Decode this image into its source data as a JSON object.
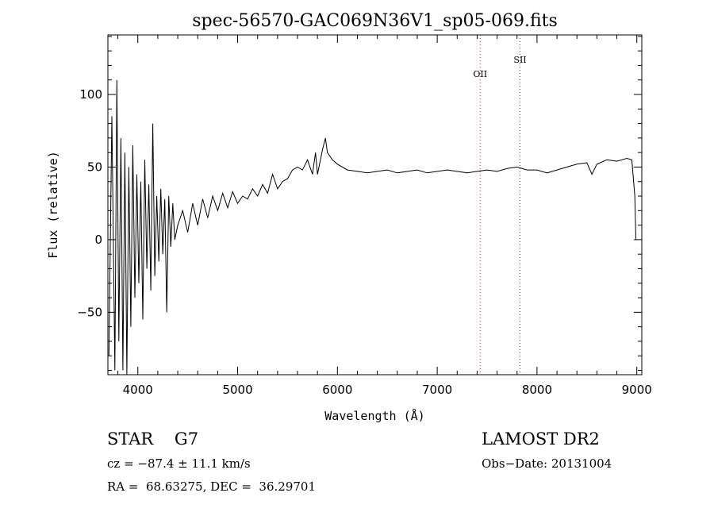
{
  "chart_data": {
    "type": "line",
    "title": "spec-56570-GAC069N36V1_sp05-069.fits",
    "xlabel": "Wavelength (Å)",
    "ylabel": "Flux (relative)",
    "xlim": [
      3700,
      9050
    ],
    "ylim": [
      -93,
      141
    ],
    "xticks": [
      4000,
      5000,
      6000,
      7000,
      8000,
      9000
    ],
    "yticks": [
      -50,
      0,
      50,
      100
    ],
    "xtick_labels": [
      "4000",
      "5000",
      "6000",
      "7000",
      "8000",
      "9000"
    ],
    "ytick_labels": [
      "−50",
      "0",
      "50",
      "100"
    ],
    "grid": false,
    "series_color": "#000000",
    "line_color": "#ff0000",
    "series": [
      {
        "x": [
          3710,
          3740,
          3770,
          3790,
          3810,
          3830,
          3850,
          3870,
          3890,
          3910,
          3930,
          3950,
          3970,
          3990,
          4010,
          4030,
          4050,
          4070,
          4090,
          4110,
          4130,
          4150,
          4170,
          4190,
          4210,
          4230,
          4250,
          4270,
          4290,
          4310,
          4330,
          4350,
          4370,
          4400,
          4450,
          4500,
          4550,
          4600,
          4650,
          4700,
          4750,
          4800,
          4850,
          4900,
          4950,
          5000,
          5050,
          5100,
          5150,
          5200,
          5250,
          5300,
          5350,
          5400,
          5450,
          5500,
          5550,
          5600,
          5650,
          5700,
          5750,
          5780,
          5800,
          5850,
          5880,
          5900,
          5950,
          6000,
          6100,
          6200,
          6300,
          6400,
          6500,
          6600,
          6700,
          6800,
          6900,
          7000,
          7100,
          7200,
          7300,
          7400,
          7500,
          7600,
          7700,
          7800,
          7900,
          8000,
          8100,
          8200,
          8300,
          8400,
          8500,
          8550,
          8600,
          8700,
          8800,
          8900,
          8950,
          8980,
          8990,
          9000
        ],
        "y": [
          -80,
          85,
          -90,
          110,
          -70,
          70,
          -90,
          60,
          -93,
          50,
          -60,
          65,
          -40,
          45,
          -30,
          40,
          -55,
          55,
          -20,
          38,
          -35,
          80,
          -25,
          30,
          -15,
          35,
          -10,
          28,
          -50,
          30,
          -5,
          25,
          0,
          10,
          20,
          5,
          25,
          10,
          28,
          15,
          30,
          20,
          32,
          22,
          33,
          25,
          30,
          28,
          35,
          30,
          38,
          32,
          45,
          35,
          40,
          42,
          48,
          50,
          48,
          55,
          45,
          60,
          45,
          62,
          70,
          60,
          55,
          52,
          48,
          47,
          46,
          47,
          48,
          46,
          47,
          48,
          46,
          47,
          48,
          47,
          46,
          47,
          48,
          47,
          49,
          50,
          48,
          48,
          46,
          48,
          50,
          52,
          53,
          45,
          52,
          55,
          54,
          56,
          55,
          30,
          0,
          0
        ]
      }
    ],
    "annotations": [
      {
        "label": "OII",
        "x": 7430
      },
      {
        "label": "SII",
        "x": 7830
      }
    ]
  },
  "info": {
    "class": "STAR    G7",
    "redshift": "cz = −87.4 ± 11.1 km/s",
    "coords": "RA =  68.63275, DEC =  36.29701",
    "survey": "LAMOST DR2",
    "obs_date": "Obs−Date: 20131004"
  }
}
